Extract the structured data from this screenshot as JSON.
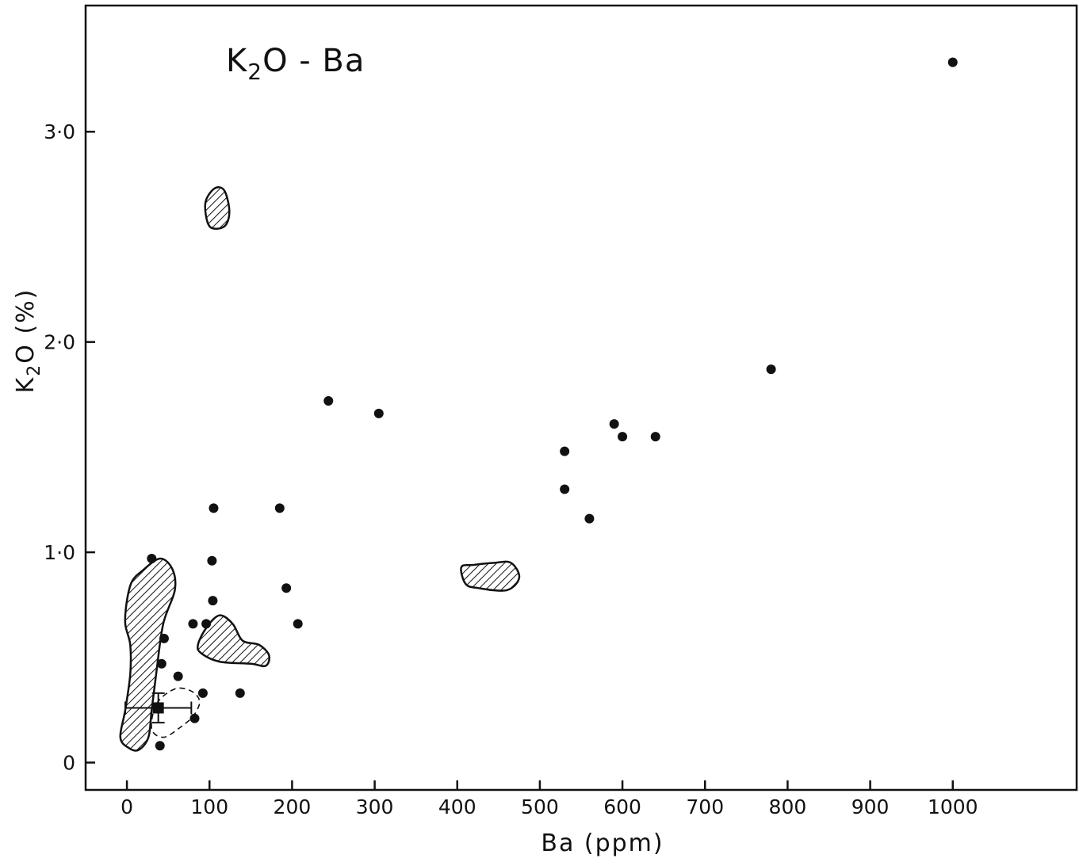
{
  "chart_data": {
    "type": "scatter",
    "title": "K2O - Ba",
    "title_main": "K",
    "title_sub": "2",
    "title_rest": "O - Ba",
    "xlabel": "Ba (ppm)",
    "ylabel": "K2O (%)",
    "ylabel_main": "K",
    "ylabel_sub": "2",
    "ylabel_rest": "O (%)",
    "xlim": [
      -50,
      1150
    ],
    "ylim": [
      -0.13,
      3.6
    ],
    "xticks": [
      0,
      100,
      200,
      300,
      400,
      500,
      600,
      700,
      800,
      900,
      1000
    ],
    "xtick_labels": [
      "0",
      "100",
      "200",
      "300",
      "400",
      "500",
      "600",
      "700",
      "800",
      "900",
      "1000"
    ],
    "yticks": [
      0,
      1.0,
      2.0,
      3.0
    ],
    "ytick_labels": [
      "0",
      "1·0",
      "2·0",
      "3·0"
    ],
    "grid": false,
    "legend": "none",
    "points": [
      {
        "x": 30,
        "y": 0.97
      },
      {
        "x": 45,
        "y": 0.59
      },
      {
        "x": 42,
        "y": 0.47
      },
      {
        "x": 62,
        "y": 0.41
      },
      {
        "x": 80,
        "y": 0.66
      },
      {
        "x": 96,
        "y": 0.66
      },
      {
        "x": 92,
        "y": 0.33
      },
      {
        "x": 82,
        "y": 0.21
      },
      {
        "x": 40,
        "y": 0.08
      },
      {
        "x": 103,
        "y": 0.96
      },
      {
        "x": 104,
        "y": 0.77
      },
      {
        "x": 105,
        "y": 1.21
      },
      {
        "x": 137,
        "y": 0.33
      },
      {
        "x": 185,
        "y": 1.21
      },
      {
        "x": 193,
        "y": 0.83
      },
      {
        "x": 207,
        "y": 0.66
      },
      {
        "x": 244,
        "y": 1.72
      },
      {
        "x": 305,
        "y": 1.66
      },
      {
        "x": 530,
        "y": 1.48
      },
      {
        "x": 530,
        "y": 1.3
      },
      {
        "x": 560,
        "y": 1.16
      },
      {
        "x": 590,
        "y": 1.61
      },
      {
        "x": 600,
        "y": 1.55
      },
      {
        "x": 640,
        "y": 1.55
      },
      {
        "x": 780,
        "y": 1.87
      },
      {
        "x": 1000,
        "y": 3.33
      }
    ],
    "mean_point": {
      "x": 38,
      "y": 0.26,
      "x_err": 40,
      "y_err": 0.07
    },
    "hatched_regions": [
      {
        "points": [
          [
            100,
            2.55
          ],
          [
            118,
            2.55
          ],
          [
            124,
            2.62
          ],
          [
            118,
            2.72
          ],
          [
            106,
            2.73
          ],
          [
            95,
            2.66
          ]
        ]
      },
      {
        "points": [
          [
            425,
            0.83
          ],
          [
            460,
            0.82
          ],
          [
            475,
            0.88
          ],
          [
            465,
            0.95
          ],
          [
            445,
            0.95
          ],
          [
            420,
            0.94
          ],
          [
            405,
            0.93
          ],
          [
            410,
            0.85
          ]
        ]
      },
      {
        "points": [
          [
            90,
            0.52
          ],
          [
            112,
            0.48
          ],
          [
            150,
            0.47
          ],
          [
            168,
            0.46
          ],
          [
            172,
            0.51
          ],
          [
            160,
            0.56
          ],
          [
            140,
            0.58
          ],
          [
            128,
            0.66
          ],
          [
            112,
            0.7
          ],
          [
            96,
            0.64
          ],
          [
            86,
            0.56
          ]
        ]
      },
      {
        "points": [
          [
            18,
            0.91
          ],
          [
            40,
            0.97
          ],
          [
            55,
            0.92
          ],
          [
            58,
            0.82
          ],
          [
            44,
            0.66
          ],
          [
            36,
            0.44
          ],
          [
            30,
            0.25
          ],
          [
            26,
            0.12
          ],
          [
            14,
            0.06
          ],
          [
            2,
            0.07
          ],
          [
            -8,
            0.12
          ],
          [
            -2,
            0.25
          ],
          [
            4,
            0.42
          ],
          [
            4,
            0.56
          ],
          [
            -2,
            0.66
          ],
          [
            0,
            0.77
          ],
          [
            6,
            0.86
          ]
        ]
      }
    ],
    "dashed_regions": [
      {
        "points": [
          [
            36,
            0.28
          ],
          [
            58,
            0.35
          ],
          [
            78,
            0.34
          ],
          [
            88,
            0.29
          ],
          [
            80,
            0.22
          ],
          [
            62,
            0.16
          ],
          [
            44,
            0.12
          ],
          [
            30,
            0.16
          ]
        ]
      }
    ]
  }
}
